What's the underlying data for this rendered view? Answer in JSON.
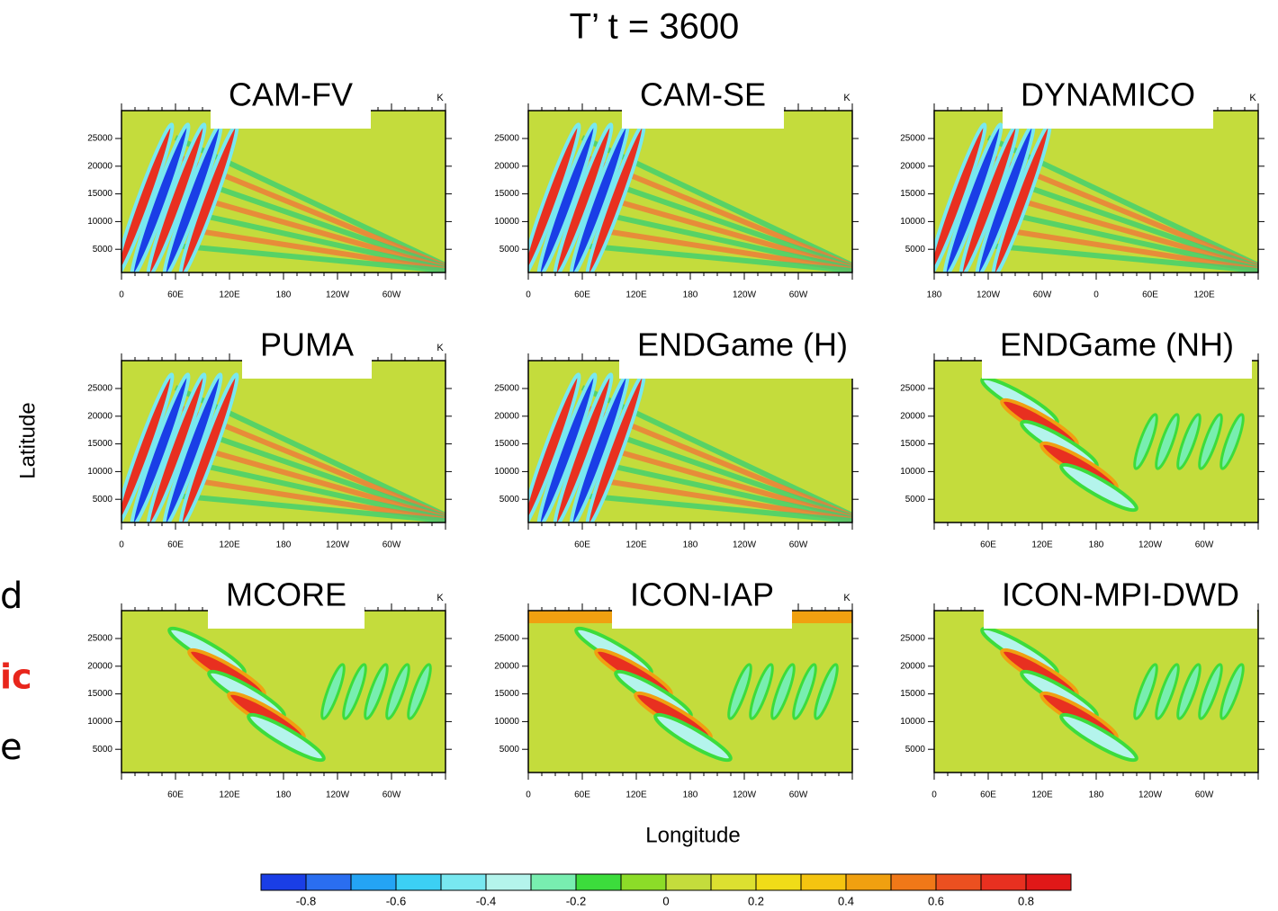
{
  "title": "T’   t = 3600",
  "y_label": "Latitude",
  "x_label": "Longitude",
  "side_text": [
    "d",
    "ic",
    "e"
  ],
  "panels": [
    {
      "label": "CAM-FV",
      "unit": "K",
      "yticks": [
        "25000",
        "20000",
        "15000",
        "10000",
        "5000"
      ],
      "xticks": [
        "0",
        "60E",
        "120E",
        "180",
        "120W",
        "60W"
      ]
    },
    {
      "label": "CAM-SE",
      "unit": "K",
      "yticks": [
        "25000",
        "20000",
        "15000",
        "10000",
        "5000"
      ],
      "xticks": [
        "0",
        "60E",
        "120E",
        "180",
        "120W",
        "60W"
      ]
    },
    {
      "label": "DYNAMICO",
      "unit": "K",
      "yticks": [
        "25000",
        "20000",
        "15000",
        "10000",
        "5000"
      ],
      "xticks": [
        "180",
        "120W",
        "60W",
        "0",
        "60E",
        "120E"
      ]
    },
    {
      "label": "PUMA",
      "unit": "K",
      "yticks": [
        "25000",
        "20000",
        "15000",
        "10000",
        "5000"
      ],
      "xticks": [
        "0",
        "60E",
        "120E",
        "180",
        "120W",
        "60W"
      ]
    },
    {
      "label": "ENDGame (H)",
      "unit": null,
      "yticks": [
        "25000",
        "20000",
        "15000",
        "10000",
        "5000"
      ],
      "xticks": [
        null,
        "60E",
        "120E",
        "180",
        "120W",
        "60W"
      ]
    },
    {
      "label": "ENDGame (NH)",
      "unit": null,
      "yticks": [
        "25000",
        "20000",
        "15000",
        "10000",
        "5000"
      ],
      "xticks": [
        null,
        "60E",
        "120E",
        "180",
        "120W",
        "60W"
      ]
    },
    {
      "label": "MCORE",
      "unit": "K",
      "yticks": [
        "25000",
        "20000",
        "15000",
        "10000",
        "5000"
      ],
      "xticks": [
        null,
        "60E",
        "120E",
        "180",
        "120W",
        "60W"
      ]
    },
    {
      "label": "ICON-IAP",
      "unit": "K",
      "yticks": [
        "25000",
        "20000",
        "15000",
        "10000",
        "5000"
      ],
      "xticks": [
        "0",
        "60E",
        "120E",
        "180",
        "120W",
        "60W"
      ]
    },
    {
      "label": "ICON-MPI-DWD",
      "unit": null,
      "yticks": [
        "25000",
        "20000",
        "15000",
        "10000",
        "5000"
      ],
      "xticks": [
        "0",
        "60E",
        "120E",
        "180",
        "120W",
        "60W"
      ]
    }
  ],
  "colorbar": {
    "colors": [
      "#1a3ee6",
      "#2a6ef0",
      "#24a4f4",
      "#3cd0f4",
      "#78e8f0",
      "#b4f4ec",
      "#78eeb0",
      "#3cdc3c",
      "#8cdc28",
      "#c4dc3c",
      "#dce030",
      "#f0dc18",
      "#f4c410",
      "#f0a010",
      "#f07818",
      "#ec5020",
      "#e83020",
      "#e01818"
    ],
    "ticks": [
      "-0.8",
      "-0.6",
      "-0.4",
      "-0.2",
      "0",
      "0.2",
      "0.4",
      "0.6",
      "0.8"
    ]
  }
}
